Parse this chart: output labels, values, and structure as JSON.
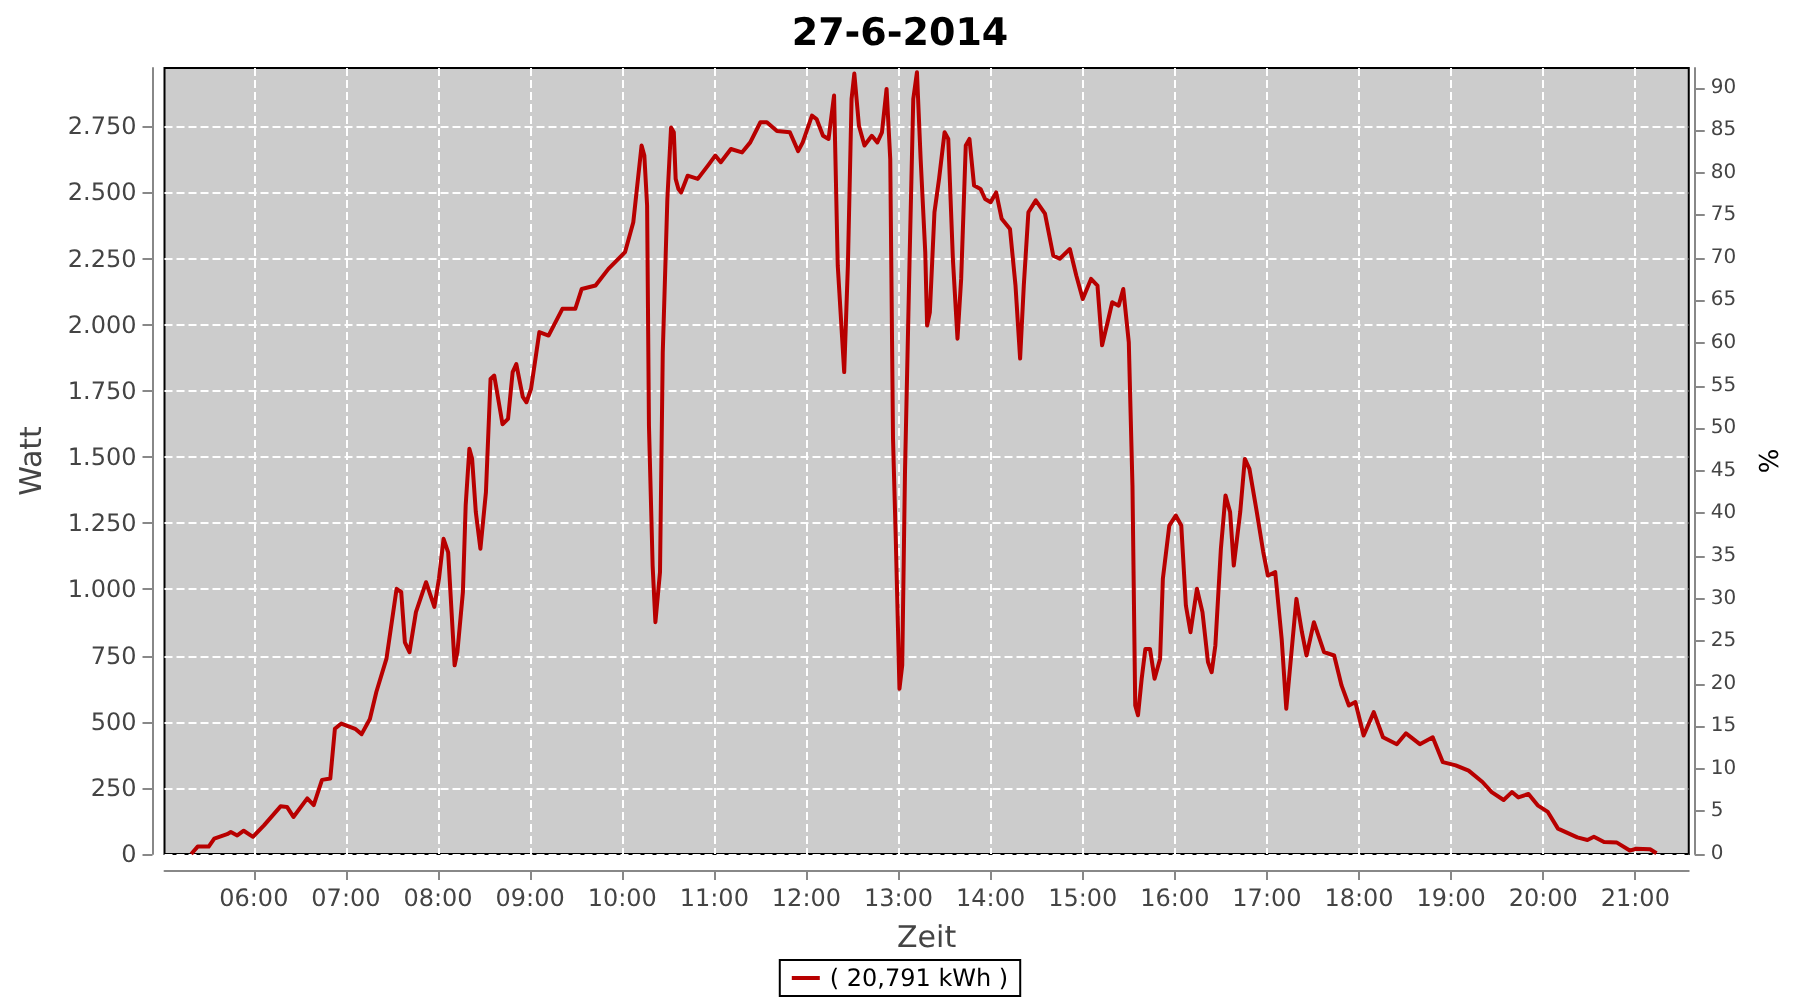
{
  "chart_data": {
    "type": "line",
    "title": "27-6-2014",
    "xlabel": "Zeit",
    "ylabel": "Watt",
    "y2label": "%",
    "xlim": [
      5.03,
      21.58
    ],
    "xticks": [
      {
        "value": 6,
        "label": "06:00"
      },
      {
        "value": 7,
        "label": "07:00"
      },
      {
        "value": 8,
        "label": "08:00"
      },
      {
        "value": 9,
        "label": "09:00"
      },
      {
        "value": 10,
        "label": "10:00"
      },
      {
        "value": 11,
        "label": "11:00"
      },
      {
        "value": 12,
        "label": "12:00"
      },
      {
        "value": 13,
        "label": "13:00"
      },
      {
        "value": 14,
        "label": "14:00"
      },
      {
        "value": 15,
        "label": "15:00"
      },
      {
        "value": 16,
        "label": "16:00"
      },
      {
        "value": 17,
        "label": "17:00"
      },
      {
        "value": 18,
        "label": "18:00"
      },
      {
        "value": 19,
        "label": "19:00"
      },
      {
        "value": 20,
        "label": "20:00"
      },
      {
        "value": 21,
        "label": "21:00"
      }
    ],
    "ylim": [
      0,
      2970
    ],
    "yticks": [
      0,
      250,
      500,
      750,
      {
        "value": 1000,
        "label": "1.000"
      },
      {
        "value": 1250,
        "label": "1.250"
      },
      {
        "value": 1500,
        "label": "1.500"
      },
      {
        "value": 1750,
        "label": "1.750"
      },
      {
        "value": 2000,
        "label": "2.000"
      },
      {
        "value": 2250,
        "label": "2.250"
      },
      {
        "value": 2500,
        "label": "2.500"
      },
      {
        "value": 2750,
        "label": "2.750"
      }
    ],
    "y2lim": [
      0,
      92.3
    ],
    "y2ticks": [
      0,
      5,
      10,
      15,
      20,
      25,
      30,
      35,
      40,
      45,
      50,
      55,
      60,
      65,
      70,
      75,
      80,
      85,
      90
    ],
    "grid": true,
    "legend": "bottom",
    "marker": "none",
    "line_style": "solid",
    "series": [
      {
        "name": "( 20,791 kWh )",
        "color": "#b80000",
        "x": [
          5.32,
          5.39,
          5.51,
          5.57,
          5.71,
          5.75,
          5.82,
          5.89,
          5.99,
          6.11,
          6.29,
          6.36,
          6.43,
          6.58,
          6.65,
          6.74,
          6.83,
          6.88,
          6.95,
          7.1,
          7.17,
          7.26,
          7.33,
          7.44,
          7.55,
          7.6,
          7.64,
          7.69,
          7.76,
          7.87,
          7.96,
          8.01,
          8.06,
          8.11,
          8.18,
          8.21,
          8.27,
          8.3,
          8.34,
          8.37,
          8.41,
          8.46,
          8.52,
          8.57,
          8.61,
          8.7,
          8.76,
          8.81,
          8.85,
          8.92,
          8.96,
          9.01,
          9.1,
          9.2,
          9.35,
          9.49,
          9.56,
          9.71,
          9.85,
          10.03,
          10.12,
          10.21,
          10.24,
          10.27,
          10.29,
          10.33,
          10.36,
          10.41,
          10.44,
          10.49,
          10.53,
          10.56,
          10.58,
          10.61,
          10.64,
          10.71,
          10.82,
          10.93,
          11.01,
          11.07,
          11.18,
          11.3,
          11.39,
          11.5,
          11.57,
          11.68,
          11.82,
          11.91,
          11.96,
          12.06,
          12.11,
          12.18,
          12.24,
          12.3,
          12.34,
          12.41,
          12.45,
          12.49,
          12.52,
          12.57,
          12.63,
          12.71,
          12.77,
          12.82,
          12.87,
          12.91,
          12.94,
          12.97,
          13.01,
          13.04,
          13.07,
          13.12,
          13.16,
          13.2,
          13.24,
          13.29,
          13.31,
          13.34,
          13.39,
          13.44,
          13.5,
          13.54,
          13.59,
          13.64,
          13.68,
          13.73,
          13.77,
          13.82,
          13.89,
          13.94,
          14.0,
          14.06,
          14.12,
          14.21,
          14.27,
          14.32,
          14.36,
          14.41,
          14.49,
          14.59,
          14.68,
          14.75,
          14.86,
          14.93,
          15.0,
          15.09,
          15.16,
          15.21,
          15.27,
          15.32,
          15.39,
          15.44,
          15.5,
          15.54,
          15.57,
          15.6,
          15.64,
          15.68,
          15.73,
          15.78,
          15.84,
          15.87,
          15.94,
          16.01,
          16.07,
          16.12,
          16.17,
          16.24,
          16.3,
          16.36,
          16.4,
          16.44,
          16.5,
          16.55,
          16.6,
          16.64,
          16.71,
          16.76,
          16.81,
          16.89,
          16.96,
          17.01,
          17.09,
          17.16,
          17.21,
          17.26,
          17.32,
          17.38,
          17.43,
          17.51,
          17.62,
          17.73,
          17.81,
          17.89,
          17.96,
          18.05,
          18.16,
          18.26,
          18.41,
          18.51,
          18.66,
          18.8,
          18.91,
          19.05,
          19.19,
          19.34,
          19.44,
          19.57,
          19.66,
          19.73,
          19.84,
          19.94,
          20.05,
          20.16,
          20.37,
          20.48,
          20.55,
          20.66,
          20.8,
          20.94,
          21.01,
          21.16,
          21.23
        ],
        "values": [
          0,
          28,
          28,
          58,
          75,
          83,
          70,
          88,
          65,
          108,
          180,
          178,
          140,
          210,
          185,
          280,
          285,
          473,
          493,
          473,
          453,
          510,
          612,
          738,
          1002,
          990,
          800,
          763,
          914,
          1027,
          934,
          1040,
          1191,
          1140,
          713,
          763,
          990,
          1317,
          1531,
          1493,
          1292,
          1153,
          1367,
          1795,
          1808,
          1624,
          1644,
          1821,
          1851,
          1727,
          1707,
          1758,
          1972,
          1959,
          2060,
          2060,
          2135,
          2148,
          2211,
          2274,
          2387,
          2677,
          2639,
          2450,
          1619,
          1090,
          876,
          1065,
          1896,
          2475,
          2745,
          2727,
          2551,
          2513,
          2500,
          2563,
          2551,
          2601,
          2639,
          2614,
          2664,
          2651,
          2689,
          2765,
          2765,
          2732,
          2727,
          2656,
          2689,
          2790,
          2777,
          2714,
          2702,
          2866,
          2223,
          1821,
          2223,
          2853,
          2949,
          2752,
          2677,
          2714,
          2689,
          2727,
          2891,
          2626,
          1569,
          1191,
          624,
          713,
          1443,
          2249,
          2853,
          2954,
          2626,
          2274,
          1997,
          2047,
          2425,
          2551,
          2727,
          2702,
          2249,
          1947,
          2173,
          2677,
          2702,
          2526,
          2513,
          2475,
          2463,
          2500,
          2400,
          2362,
          2148,
          1872,
          2148,
          2425,
          2470,
          2420,
          2261,
          2249,
          2286,
          2186,
          2097,
          2173,
          2148,
          1922,
          2009,
          2085,
          2072,
          2135,
          1934,
          1392,
          561,
          524,
          662,
          775,
          775,
          662,
          738,
          1040,
          1241,
          1279,
          1241,
          939,
          838,
          1002,
          914,
          725,
          687,
          788,
          1153,
          1355,
          1292,
          1090,
          1292,
          1493,
          1455,
          1292,
          1141,
          1052,
          1065,
          813,
          549,
          738,
          964,
          838,
          750,
          876,
          763,
          750,
          637,
          561,
          574,
          448,
          536,
          441,
          415,
          456,
          415,
          441,
          347,
          335,
          315,
          272,
          234,
          204,
          234,
          214,
          227,
          184,
          159,
          96,
          63,
          53,
          65,
          45,
          43,
          13,
          20,
          18,
          3
        ]
      }
    ]
  }
}
